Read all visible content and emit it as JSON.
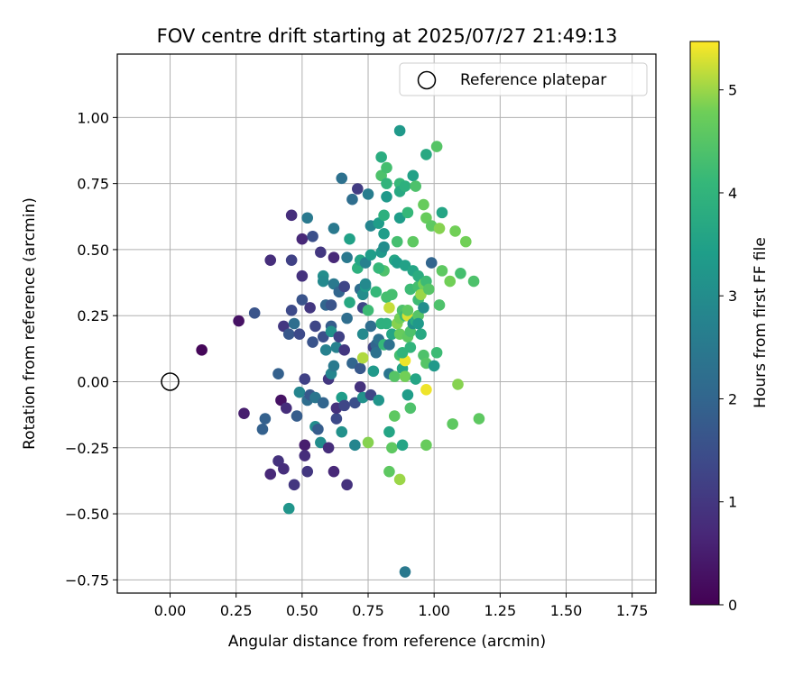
{
  "chart_data": {
    "type": "scatter",
    "title": "FOV centre drift starting at 2025/07/27 21:49:13",
    "xlabel": "Angular distance from reference (arcmin)",
    "ylabel": "Rotation from reference (arcmin)",
    "xlim": [
      -0.2,
      1.84
    ],
    "ylim": [
      -0.8,
      1.24
    ],
    "x_ticks": [
      0.0,
      0.25,
      0.5,
      0.75,
      1.0,
      1.25,
      1.5,
      1.75
    ],
    "x_tick_labels": [
      "0.00",
      "0.25",
      "0.50",
      "0.75",
      "1.00",
      "1.25",
      "1.50",
      "1.75"
    ],
    "y_ticks": [
      -0.75,
      -0.5,
      -0.25,
      0.0,
      0.25,
      0.5,
      0.75,
      1.0
    ],
    "y_tick_labels": [
      "−0.75",
      "−0.50",
      "−0.25",
      "0.00",
      "0.25",
      "0.50",
      "0.75",
      "1.00"
    ],
    "grid": true,
    "legend": {
      "placement": "upper right",
      "entries": [
        "Reference platepar"
      ]
    },
    "reference_point": {
      "x": 0.0,
      "y": 0.0,
      "marker": "open-circle",
      "color": "#000000"
    },
    "colorbar": {
      "label": "Hours from first FF file",
      "min": 0,
      "max": 5.47,
      "colormap": "viridis",
      "ticks": [
        0,
        1,
        2,
        3,
        4,
        5
      ],
      "tick_labels": [
        "0",
        "1",
        "2",
        "3",
        "4",
        "5"
      ]
    },
    "series": [
      {
        "marker": "filled-circle",
        "x_unit": "arcmin",
        "y_unit": "arcmin",
        "points": [
          [
            0.12,
            0.12,
            0.1
          ],
          [
            0.26,
            0.23,
            0.3
          ],
          [
            0.28,
            -0.12,
            0.5
          ],
          [
            0.32,
            0.26,
            1.6
          ],
          [
            0.35,
            -0.18,
            1.9
          ],
          [
            0.36,
            -0.14,
            1.9
          ],
          [
            0.38,
            0.46,
            0.8
          ],
          [
            0.38,
            -0.35,
            0.7
          ],
          [
            0.41,
            -0.3,
            0.9
          ],
          [
            0.42,
            -0.07,
            0.3
          ],
          [
            0.41,
            0.03,
            1.9
          ],
          [
            0.43,
            0.21,
            1.0
          ],
          [
            0.44,
            -0.1,
            0.8
          ],
          [
            0.43,
            -0.33,
            0.8
          ],
          [
            0.45,
            0.18,
            1.7
          ],
          [
            0.45,
            -0.48,
            3.2
          ],
          [
            0.46,
            0.63,
            0.8
          ],
          [
            0.46,
            0.46,
            1.2
          ],
          [
            0.46,
            0.27,
            1.4
          ],
          [
            0.47,
            0.22,
            2.2
          ],
          [
            0.47,
            -0.39,
            1.0
          ],
          [
            0.48,
            -0.13,
            1.8
          ],
          [
            0.49,
            -0.04,
            2.8
          ],
          [
            0.49,
            0.18,
            1.4
          ],
          [
            0.5,
            0.31,
            1.6
          ],
          [
            0.5,
            0.4,
            0.9
          ],
          [
            0.5,
            0.54,
            0.7
          ],
          [
            0.51,
            -0.24,
            0.5
          ],
          [
            0.51,
            -0.28,
            0.8
          ],
          [
            0.51,
            0.01,
            1.2
          ],
          [
            0.52,
            -0.07,
            2.2
          ],
          [
            0.52,
            0.62,
            2.5
          ],
          [
            0.52,
            -0.34,
            1.0
          ],
          [
            0.53,
            0.28,
            1.0
          ],
          [
            0.53,
            -0.05,
            1.7
          ],
          [
            0.54,
            0.55,
            1.5
          ],
          [
            0.54,
            0.15,
            1.6
          ],
          [
            0.55,
            -0.17,
            3.0
          ],
          [
            0.55,
            0.21,
            1.3
          ],
          [
            0.55,
            -0.06,
            2.4
          ],
          [
            0.56,
            -0.18,
            1.8
          ],
          [
            0.57,
            0.49,
            1.0
          ],
          [
            0.57,
            -0.23,
            3.0
          ],
          [
            0.58,
            0.17,
            1.5
          ],
          [
            0.58,
            -0.08,
            2.0
          ],
          [
            0.58,
            0.4,
            3.0
          ],
          [
            0.58,
            0.38,
            2.9
          ],
          [
            0.59,
            0.29,
            2.0
          ],
          [
            0.59,
            0.12,
            2.7
          ],
          [
            0.6,
            0.01,
            1.0
          ],
          [
            0.6,
            -0.25,
            0.8
          ],
          [
            0.61,
            0.21,
            1.8
          ],
          [
            0.61,
            0.29,
            1.6
          ],
          [
            0.61,
            0.19,
            3.1
          ],
          [
            0.61,
            0.03,
            2.8
          ],
          [
            0.62,
            0.47,
            0.7
          ],
          [
            0.62,
            0.58,
            2.5
          ],
          [
            0.62,
            -0.34,
            0.7
          ],
          [
            0.62,
            0.06,
            2.5
          ],
          [
            0.62,
            0.37,
            2.5
          ],
          [
            0.63,
            -0.14,
            1.4
          ],
          [
            0.63,
            0.13,
            2.7
          ],
          [
            0.63,
            -0.1,
            0.9
          ],
          [
            0.64,
            0.34,
            2.0
          ],
          [
            0.64,
            0.17,
            1.2
          ],
          [
            0.65,
            -0.06,
            3.4
          ],
          [
            0.65,
            0.77,
            2.3
          ],
          [
            0.65,
            -0.19,
            3.1
          ],
          [
            0.66,
            -0.09,
            1.3
          ],
          [
            0.66,
            0.12,
            1.0
          ],
          [
            0.66,
            0.36,
            1.3
          ],
          [
            0.67,
            -0.39,
            0.9
          ],
          [
            0.67,
            0.24,
            2.2
          ],
          [
            0.67,
            0.47,
            2.5
          ],
          [
            0.68,
            0.54,
            3.5
          ],
          [
            0.68,
            0.3,
            3.7
          ],
          [
            0.69,
            0.07,
            2.0
          ],
          [
            0.69,
            0.69,
            2.2
          ],
          [
            0.7,
            -0.24,
            2.8
          ],
          [
            0.7,
            -0.08,
            1.5
          ],
          [
            0.71,
            0.43,
            3.9
          ],
          [
            0.71,
            0.73,
            1.1
          ],
          [
            0.72,
            0.46,
            3.6
          ],
          [
            0.72,
            0.35,
            2.9
          ],
          [
            0.72,
            0.05,
            1.7
          ],
          [
            0.72,
            -0.02,
            0.9
          ],
          [
            0.72,
            0.35,
            2.2
          ],
          [
            0.73,
            0.28,
            1.3
          ],
          [
            0.73,
            0.18,
            2.9
          ],
          [
            0.73,
            -0.06,
            3.1
          ],
          [
            0.73,
            0.09,
            5.1
          ],
          [
            0.73,
            0.33,
            3.0
          ],
          [
            0.74,
            0.36,
            3.3
          ],
          [
            0.74,
            0.37,
            2.9
          ],
          [
            0.74,
            0.45,
            2.7
          ],
          [
            0.75,
            0.27,
            4.2
          ],
          [
            0.75,
            0.71,
            2.6
          ],
          [
            0.75,
            -0.23,
            4.9
          ],
          [
            0.76,
            0.48,
            3.4
          ],
          [
            0.76,
            -0.05,
            1.3
          ],
          [
            0.76,
            0.59,
            2.8
          ],
          [
            0.76,
            0.21,
            2.2
          ],
          [
            0.77,
            0.13,
            1.2
          ],
          [
            0.77,
            0.04,
            3.3
          ],
          [
            0.78,
            0.14,
            2.0
          ],
          [
            0.78,
            0.11,
            2.3
          ],
          [
            0.78,
            0.34,
            4.1
          ],
          [
            0.79,
            -0.07,
            3.2
          ],
          [
            0.79,
            0.6,
            3.4
          ],
          [
            0.79,
            0.16,
            2.3
          ],
          [
            0.8,
            0.49,
            3.3
          ],
          [
            0.8,
            0.22,
            3.9
          ],
          [
            0.8,
            0.78,
            4.4
          ],
          [
            0.8,
            0.85,
            3.8
          ],
          [
            0.81,
            0.63,
            3.9
          ],
          [
            0.81,
            0.56,
            3.4
          ],
          [
            0.81,
            0.42,
            4.4
          ],
          [
            0.81,
            0.14,
            4.1
          ],
          [
            0.81,
            0.51,
            3.0
          ],
          [
            0.82,
            0.75,
            4.0
          ],
          [
            0.82,
            0.22,
            3.9
          ],
          [
            0.82,
            0.81,
            4.3
          ],
          [
            0.82,
            0.32,
            4.3
          ],
          [
            0.82,
            0.7,
            3.3
          ],
          [
            0.83,
            0.28,
            5.2
          ],
          [
            0.83,
            -0.34,
            4.6
          ],
          [
            0.83,
            -0.19,
            3.6
          ],
          [
            0.83,
            0.03,
            2.4
          ],
          [
            0.83,
            0.14,
            2.3
          ],
          [
            0.84,
            0.33,
            4.3
          ],
          [
            0.84,
            -0.25,
            4.6
          ],
          [
            0.84,
            0.18,
            3.6
          ],
          [
            0.85,
            0.46,
            3.6
          ],
          [
            0.85,
            0.02,
            4.5
          ],
          [
            0.85,
            -0.13,
            4.6
          ],
          [
            0.86,
            0.22,
            4.9
          ],
          [
            0.86,
            0.53,
            4.3
          ],
          [
            0.86,
            0.45,
            3.4
          ],
          [
            0.87,
            0.24,
            4.8
          ],
          [
            0.87,
            0.62,
            3.4
          ],
          [
            0.87,
            0.95,
            3.3
          ],
          [
            0.87,
            0.1,
            4.3
          ],
          [
            0.87,
            0.75,
            4.1
          ],
          [
            0.87,
            0.72,
            3.7
          ],
          [
            0.87,
            -0.37,
            5.0
          ],
          [
            0.87,
            0.18,
            4.7
          ],
          [
            0.88,
            0.27,
            4.4
          ],
          [
            0.88,
            -0.24,
            3.6
          ],
          [
            0.88,
            0.05,
            3.6
          ],
          [
            0.89,
            -0.72,
            2.5
          ],
          [
            0.89,
            0.08,
            5.4
          ],
          [
            0.89,
            0.74,
            3.9
          ],
          [
            0.89,
            0.25,
            4.2
          ],
          [
            0.89,
            0.02,
            4.8
          ],
          [
            0.89,
            0.44,
            3.5
          ],
          [
            0.9,
            0.64,
            4.1
          ],
          [
            0.9,
            0.17,
            4.6
          ],
          [
            0.9,
            0.25,
            5.3
          ],
          [
            0.9,
            0.27,
            4.6
          ],
          [
            0.9,
            -0.05,
            3.4
          ],
          [
            0.91,
            0.19,
            4.4
          ],
          [
            0.91,
            0.13,
            4.0
          ],
          [
            0.91,
            0.35,
            4.2
          ],
          [
            0.91,
            -0.1,
            4.4
          ],
          [
            0.92,
            0.42,
            3.6
          ],
          [
            0.92,
            0.53,
            4.6
          ],
          [
            0.92,
            0.78,
            3.5
          ],
          [
            0.92,
            0.22,
            3.1
          ],
          [
            0.93,
            0.74,
            4.4
          ],
          [
            0.93,
            0.01,
            3.6
          ],
          [
            0.93,
            0.23,
            3.8
          ],
          [
            0.94,
            0.25,
            4.5
          ],
          [
            0.94,
            0.36,
            4.3
          ],
          [
            0.94,
            0.31,
            4.2
          ],
          [
            0.94,
            0.4,
            3.8
          ],
          [
            0.95,
            0.18,
            3.7
          ],
          [
            0.95,
            0.33,
            5.0
          ],
          [
            0.96,
            0.37,
            4.8
          ],
          [
            0.96,
            0.67,
            4.7
          ],
          [
            0.96,
            0.28,
            3.0
          ],
          [
            0.96,
            0.1,
            4.4
          ],
          [
            0.97,
            0.38,
            4.2
          ],
          [
            0.97,
            -0.03,
            5.4
          ],
          [
            0.97,
            0.07,
            4.5
          ],
          [
            0.97,
            0.62,
            4.7
          ],
          [
            0.97,
            -0.24,
            4.7
          ],
          [
            0.98,
            0.35,
            4.5
          ],
          [
            0.99,
            0.45,
            2.0
          ],
          [
            0.99,
            0.59,
            4.6
          ],
          [
            1.0,
            0.06,
            3.3
          ],
          [
            1.01,
            0.89,
            4.5
          ],
          [
            1.01,
            0.11,
            4.2
          ],
          [
            1.02,
            0.29,
            4.4
          ],
          [
            1.02,
            0.58,
            4.9
          ],
          [
            1.03,
            0.42,
            4.6
          ],
          [
            1.03,
            0.64,
            3.6
          ],
          [
            1.06,
            0.38,
            4.8
          ],
          [
            1.07,
            -0.16,
            4.6
          ],
          [
            1.08,
            0.57,
            4.8
          ],
          [
            1.09,
            -0.01,
            4.9
          ],
          [
            1.1,
            0.41,
            4.3
          ],
          [
            1.12,
            0.53,
            4.8
          ],
          [
            1.15,
            0.38,
            4.4
          ],
          [
            1.17,
            -0.14,
            4.6
          ],
          [
            0.97,
            0.86,
            3.7
          ],
          [
            0.88,
            0.11,
            4.0
          ],
          [
            0.94,
            0.22,
            3.3
          ],
          [
            0.79,
            0.43,
            4.1
          ]
        ]
      }
    ]
  }
}
